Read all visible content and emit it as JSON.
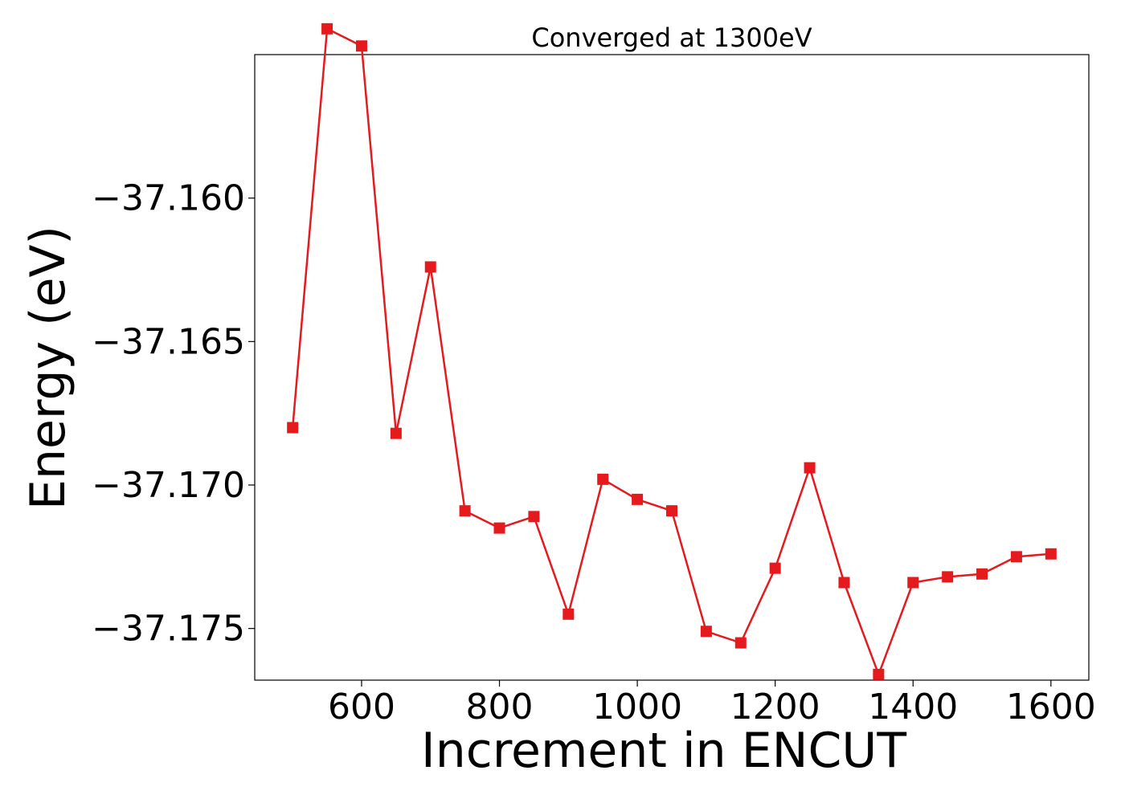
{
  "chart_data": {
    "type": "line",
    "title": "Converged at 1300eV",
    "xlabel": "Increment in ENCUT",
    "ylabel": "Energy (eV)",
    "xlim": [
      445,
      1655
    ],
    "ylim": [
      -37.1768,
      -37.155
    ],
    "x_ticks": [
      600,
      800,
      1000,
      1200,
      1400,
      1600
    ],
    "x_tick_labels": [
      "600",
      "800",
      "1000",
      "1200",
      "1400",
      "1600"
    ],
    "y_ticks": [
      -37.16,
      -37.165,
      -37.17,
      -37.175
    ],
    "y_tick_labels": [
      "−37.160",
      "−37.165",
      "−37.170",
      "−37.175"
    ],
    "grid": false,
    "series": [
      {
        "color": "#e41a1c",
        "marker": "square",
        "x": [
          500,
          550,
          600,
          650,
          700,
          750,
          800,
          850,
          900,
          950,
          1000,
          1050,
          1100,
          1150,
          1200,
          1250,
          1300,
          1350,
          1400,
          1450,
          1500,
          1550,
          1600
        ],
        "y": [
          -37.168,
          -37.1541,
          -37.1547,
          -37.1682,
          -37.1624,
          -37.1709,
          -37.1715,
          -37.1711,
          -37.1745,
          -37.1698,
          -37.1705,
          -37.1709,
          -37.1751,
          -37.1755,
          -37.1729,
          -37.1694,
          -37.1734,
          -37.1766,
          -37.1734,
          -37.1732,
          -37.1731,
          -37.1725,
          -37.1724
        ]
      }
    ]
  }
}
